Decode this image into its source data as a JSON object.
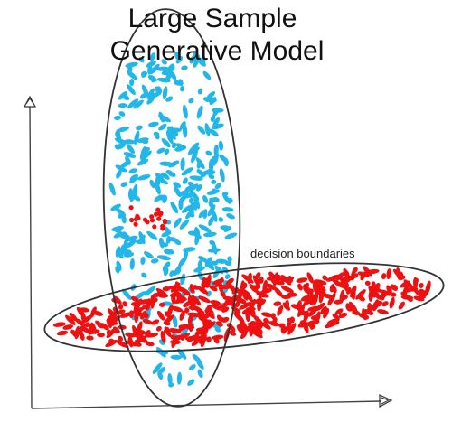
{
  "title": {
    "line1": "Large Sample",
    "line2": "Generative Model"
  },
  "annotations": {
    "decision_boundaries": "decision boundaries"
  },
  "colors": {
    "blue_class": "#22b7e8",
    "red_class": "#ee1111",
    "axis": "#444444",
    "boundary": "#333333"
  },
  "icons": {
    "y_axis_arrow": "arrowhead-up-icon",
    "x_axis_arrow": "arrowhead-right-icon"
  }
}
